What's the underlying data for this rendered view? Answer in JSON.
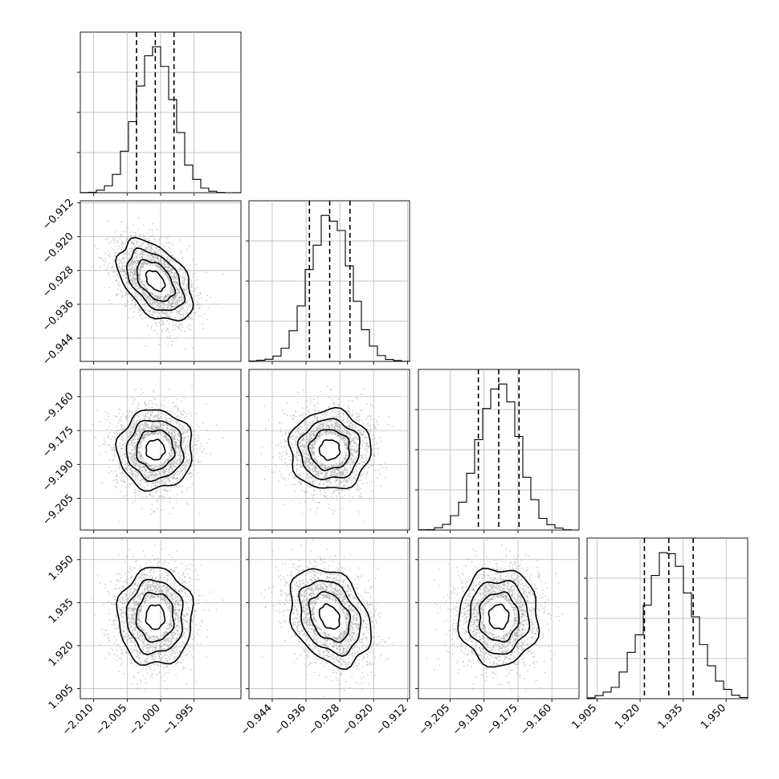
{
  "chart_data": {
    "type": "corner",
    "parameters": [
      {
        "name": "",
        "mean": -2.0008,
        "std": 0.0028,
        "range": [
          -2.012,
          -1.988
        ],
        "quantiles": [
          -2.0036,
          -2.0008,
          -1.998
        ],
        "ticks": [
          "−2.010",
          "−2.005",
          "−2.000",
          "−1.995"
        ],
        "tick_values": [
          -2.01,
          -2.005,
          -2.0,
          -1.995
        ]
      },
      {
        "name": "",
        "mean": -0.9304,
        "std": 0.0048,
        "range": [
          -0.9495,
          -0.9115
        ],
        "quantiles": [
          -0.9352,
          -0.9304,
          -0.9256
        ],
        "ticks": [
          "−0.944",
          "−0.936",
          "−0.928",
          "−0.920",
          "−0.912"
        ],
        "tick_values": [
          -0.944,
          -0.936,
          -0.928,
          -0.92,
          -0.912
        ]
      },
      {
        "name": "",
        "mean": -9.1835,
        "std": 0.0088,
        "range": [
          -9.219,
          -9.148
        ],
        "quantiles": [
          -9.1925,
          -9.1835,
          -9.1745
        ],
        "ticks": [
          "−9.205",
          "−9.190",
          "−9.175",
          "−9.160"
        ],
        "tick_values": [
          -9.205,
          -9.19,
          -9.175,
          -9.16
        ]
      },
      {
        "name": "",
        "mean": 1.93,
        "std": 0.0085,
        "range": [
          1.9015,
          1.9575
        ],
        "quantiles": [
          1.9215,
          1.93,
          1.9385
        ],
        "ticks": [
          "1.905",
          "1.920",
          "1.935",
          "1.950"
        ],
        "tick_values": [
          1.905,
          1.92,
          1.935,
          1.95
        ]
      }
    ],
    "correlations": [
      [
        0,
        1,
        -0.45
      ],
      [
        0,
        2,
        0.0
      ],
      [
        0,
        3,
        0.0
      ],
      [
        1,
        2,
        0.0
      ],
      [
        1,
        3,
        -0.3
      ],
      [
        2,
        3,
        0.0
      ]
    ],
    "histogram_bins": 20,
    "quantile_levels": [
      0.16,
      0.5,
      0.84
    ],
    "contour_levels_sigma": [
      0.5,
      1.0,
      1.5,
      2.0
    ],
    "grid": true,
    "histogram_color": "#000000",
    "scatter_color": "#9a9a9a",
    "density_cmap": [
      "#ffffff",
      "#000000"
    ]
  }
}
